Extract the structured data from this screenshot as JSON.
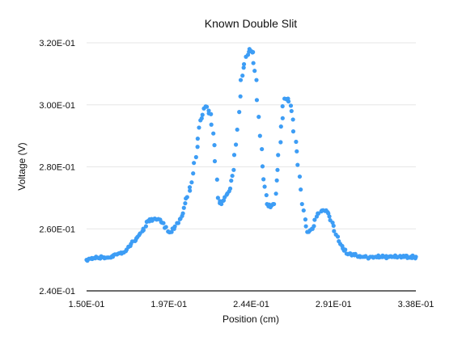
{
  "chart_data": {
    "type": "scatter",
    "title": "Known Double Slit",
    "xlabel": "Position (cm)",
    "ylabel": "Voltage (V)",
    "xlim": [
      0.15,
      0.338
    ],
    "ylim": [
      0.24,
      0.32
    ],
    "xticks": [
      0.15,
      0.197,
      0.244,
      0.291,
      0.338
    ],
    "yticks": [
      0.24,
      0.26,
      0.28,
      0.3,
      0.32
    ],
    "xtick_labels": [
      "1.50E-01",
      "1.97E-01",
      "2.44E-01",
      "2.91E-01",
      "3.38E-01"
    ],
    "ytick_labels": [
      "2.40E-01",
      "2.60E-01",
      "2.80E-01",
      "3.00E-01",
      "3.20E-01"
    ],
    "grid": "horizontal",
    "legend": "none",
    "point_color": "#3d9df5",
    "series": [
      {
        "x": [
          0.15,
          0.155,
          0.16,
          0.165,
          0.17,
          0.175,
          0.18,
          0.185,
          0.19,
          0.193,
          0.197,
          0.2,
          0.205,
          0.21,
          0.215,
          0.218,
          0.221,
          0.223,
          0.225,
          0.227,
          0.23,
          0.232,
          0.234,
          0.236,
          0.238,
          0.241,
          0.243,
          0.245,
          0.247,
          0.249,
          0.251,
          0.253,
          0.255,
          0.257,
          0.259,
          0.261,
          0.263,
          0.265,
          0.267,
          0.27,
          0.273,
          0.276,
          0.279,
          0.282,
          0.285,
          0.288,
          0.291,
          0.294,
          0.297,
          0.3,
          0.303,
          0.306,
          0.309,
          0.312,
          0.315,
          0.32,
          0.325,
          0.33,
          0.335,
          0.338
        ],
        "y": [
          0.25,
          0.2505,
          0.2508,
          0.251,
          0.252,
          0.2545,
          0.258,
          0.2625,
          0.263,
          0.262,
          0.259,
          0.26,
          0.265,
          0.275,
          0.295,
          0.2995,
          0.297,
          0.287,
          0.27,
          0.268,
          0.271,
          0.273,
          0.279,
          0.292,
          0.308,
          0.3155,
          0.318,
          0.317,
          0.308,
          0.29,
          0.276,
          0.268,
          0.267,
          0.268,
          0.279,
          0.293,
          0.302,
          0.302,
          0.298,
          0.285,
          0.268,
          0.259,
          0.26,
          0.265,
          0.266,
          0.265,
          0.261,
          0.256,
          0.253,
          0.252,
          0.2515,
          0.2512,
          0.251,
          0.251,
          0.251,
          0.251,
          0.251,
          0.251,
          0.251,
          0.251
        ]
      }
    ]
  }
}
